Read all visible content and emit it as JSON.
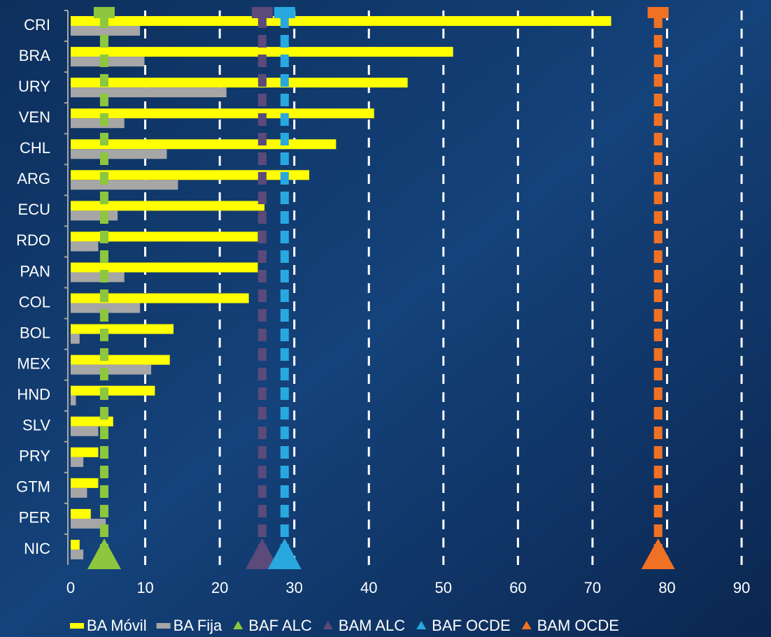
{
  "chart_data": {
    "type": "hbar",
    "categories": [
      "CRI",
      "BRA",
      "URY",
      "VEN",
      "CHL",
      "ARG",
      "ECU",
      "RDO",
      "PAN",
      "COL",
      "BOL",
      "MEX",
      "HND",
      "SLV",
      "PRY",
      "GTM",
      "PER",
      "NIC"
    ],
    "series": [
      {
        "name": "BA Móvil",
        "color": "#ffff00",
        "values": [
          72.5,
          51.3,
          45.2,
          40.7,
          35.6,
          32.0,
          26.0,
          25.1,
          25.1,
          23.9,
          13.8,
          13.3,
          11.3,
          5.7,
          3.7,
          3.7,
          2.7,
          1.2
        ]
      },
      {
        "name": "BA Fija",
        "color": "#a6a6a6",
        "values": [
          9.3,
          9.9,
          20.9,
          7.2,
          12.9,
          14.4,
          6.3,
          3.7,
          7.2,
          9.3,
          1.2,
          10.8,
          0.7,
          3.7,
          1.7,
          2.2,
          4.7,
          1.7
        ]
      }
    ],
    "reference_lines": [
      {
        "name": "BAF ALC",
        "color": "#8dc63f",
        "value": 4.5
      },
      {
        "name": "BAM ALC",
        "color": "#5b4a7a",
        "value": 25.7
      },
      {
        "name": "BAF OCDE",
        "color": "#29a8e0",
        "value": 28.7
      },
      {
        "name": "BAM OCDE",
        "color": "#f07124",
        "value": 78.8
      }
    ],
    "xlim": [
      0,
      90
    ],
    "xticks": [
      0,
      10,
      20,
      30,
      40,
      50,
      60,
      70,
      80,
      90
    ],
    "grid": true
  }
}
